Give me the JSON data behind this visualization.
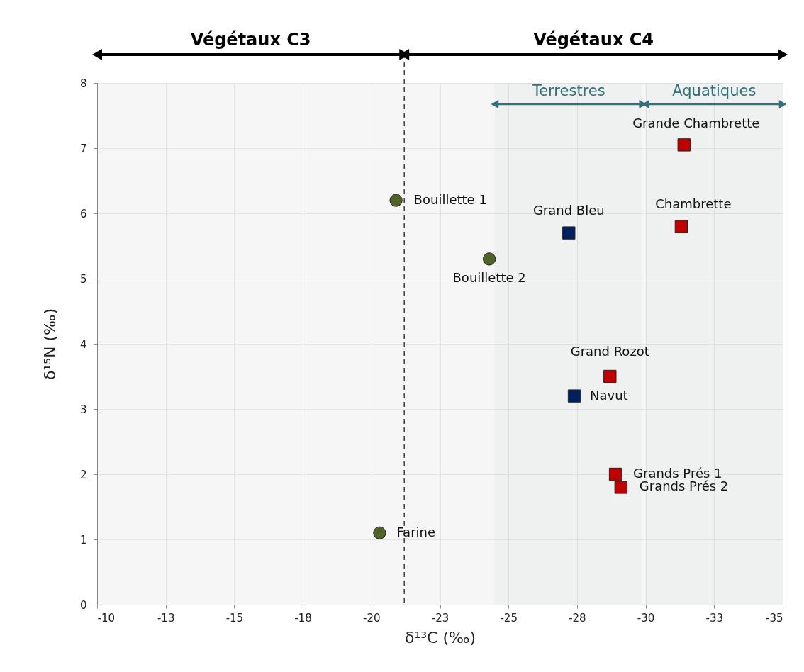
{
  "chart_data": {
    "type": "scatter",
    "xlabel": "δ¹³C (‰)",
    "ylabel": "δ¹⁵N (‰)",
    "xlim": [
      -10,
      -35
    ],
    "xticks": [
      -10,
      {
        "value": -12.5,
        "label": "-13"
      },
      -15,
      {
        "value": -17.5,
        "label": "-18"
      },
      -20,
      {
        "value": -22.5,
        "label": "-23"
      },
      -25,
      {
        "value": -27.5,
        "label": "-28"
      },
      -30,
      {
        "value": -32.5,
        "label": "-33"
      },
      -35
    ],
    "ylim": [
      0,
      8
    ],
    "yticks": [
      0,
      1,
      2,
      3,
      4,
      5,
      6,
      7,
      8
    ],
    "grid": true,
    "series": [
      {
        "color": "#4f6228",
        "marker": "circle",
        "x": [
          -20.9,
          -24.3,
          -20.3
        ],
        "values": [
          6.2,
          5.3,
          1.1
        ],
        "value_labels": [
          "Bouillette 1",
          "Bouillette 2",
          "Farine"
        ]
      },
      {
        "color": "#002060",
        "marker": "square",
        "x": [
          -27.2,
          -27.4
        ],
        "values": [
          5.7,
          3.2
        ],
        "value_labels": [
          "Grand Bleu",
          "Navut"
        ]
      },
      {
        "color": "#c00000",
        "marker": "square",
        "x": [
          -28.7,
          -31.4,
          -31.3,
          -28.9,
          -29.1
        ],
        "values": [
          3.5,
          7.05,
          5.8,
          2.0,
          1.8
        ],
        "value_labels": [
          "Grand Rozot",
          "Grande Chambrette",
          "Chambrette",
          "Grands Prés 1",
          "Grands Prés 2"
        ]
      }
    ],
    "ref_lines": [
      {
        "axis": "x",
        "value": -21.2,
        "color": "#404040",
        "line_style": "dashed"
      }
    ],
    "bands": [
      {
        "axis": "x",
        "from": -10,
        "to": -21.2,
        "label": "Végétaux C3",
        "color": "#000000"
      },
      {
        "axis": "x",
        "from": -21.2,
        "to": -35,
        "label": "Végétaux C4",
        "color": "#000000"
      },
      {
        "axis": "x",
        "from": -24.5,
        "to": -29.9,
        "label": "Terrestres",
        "color": "#31707d"
      },
      {
        "axis": "x",
        "from": -30,
        "to": -35,
        "label": "Aquatiques",
        "color": "#31707d"
      }
    ]
  }
}
